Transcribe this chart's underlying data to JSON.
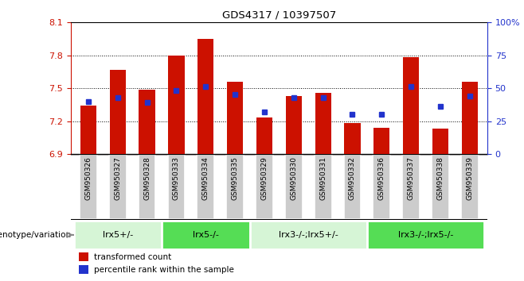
{
  "title": "GDS4317 / 10397507",
  "samples": [
    "GSM950326",
    "GSM950327",
    "GSM950328",
    "GSM950333",
    "GSM950334",
    "GSM950335",
    "GSM950329",
    "GSM950330",
    "GSM950331",
    "GSM950332",
    "GSM950336",
    "GSM950337",
    "GSM950338",
    "GSM950339"
  ],
  "red_values": [
    7.34,
    7.67,
    7.49,
    7.8,
    7.95,
    7.56,
    7.23,
    7.43,
    7.46,
    7.18,
    7.14,
    7.78,
    7.13,
    7.56
  ],
  "blue_values": [
    40,
    43,
    39,
    48,
    51,
    45,
    32,
    43,
    43,
    30,
    30,
    51,
    36,
    44
  ],
  "ylim_left": [
    6.9,
    8.1
  ],
  "ylim_right": [
    0,
    100
  ],
  "yticks_left": [
    6.9,
    7.2,
    7.5,
    7.8,
    8.1
  ],
  "yticks_right": [
    0,
    25,
    50,
    75,
    100
  ],
  "bar_color": "#cc1100",
  "dot_color": "#2233cc",
  "bar_bottom": 6.9,
  "groups": [
    {
      "label": "lrx5+/-",
      "start": 0,
      "end": 3,
      "color": "#d6f5d6"
    },
    {
      "label": "lrx5-/-",
      "start": 3,
      "end": 6,
      "color": "#55dd55"
    },
    {
      "label": "lrx3-/-;lrx5+/-",
      "start": 6,
      "end": 10,
      "color": "#d6f5d6"
    },
    {
      "label": "lrx3-/-;lrx5-/-",
      "start": 10,
      "end": 14,
      "color": "#55dd55"
    }
  ],
  "genotype_label": "genotype/variation",
  "legend_red": "transformed count",
  "legend_blue": "percentile rank within the sample",
  "bg_color": "#ffffff",
  "grid_lines": [
    7.2,
    7.5,
    7.8
  ],
  "bar_width": 0.55
}
